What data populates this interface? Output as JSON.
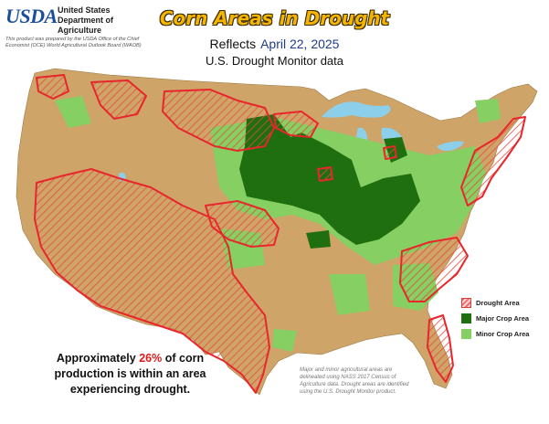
{
  "logo": {
    "text": "USDA",
    "department_lines": [
      "United States",
      "Department of",
      "Agriculture"
    ],
    "note": "This product was prepared by the USDA Office of the Chief Economist (OCE) World Agricultural Outlook Board (WAOB)"
  },
  "title": "Corn Areas in Drought",
  "subtitle": {
    "prefix": "Reflects",
    "date": "April 22, 2025"
  },
  "source_line": "U.S. Drought Monitor data",
  "statistic": {
    "text_before": "Approximately",
    "percent": "26%",
    "text_after": "of corn production is within an area experiencing drought."
  },
  "legend": {
    "items": [
      {
        "label": "Drought Area",
        "kind": "drought"
      },
      {
        "label": "Major Crop Area",
        "kind": "major"
      },
      {
        "label": "Minor Crop Area",
        "kind": "minor"
      }
    ]
  },
  "footnote": "Major and minor agricultural areas are delineated using NASS 2017 Census of Agriculture data. Drought areas are identified using the U.S. Drought Monitor product.",
  "colors": {
    "land": "#cfa468",
    "major_crop": "#1f6e0f",
    "minor_crop": "#86cf63",
    "drought_outline": "#e8262c",
    "drought_hatch": "#e84a3a",
    "water": "#8ccfea",
    "title_fill": "#f4b400"
  }
}
